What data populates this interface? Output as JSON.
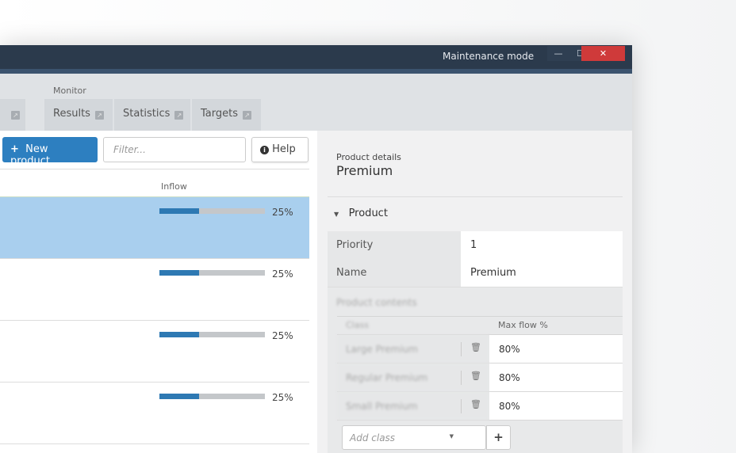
{
  "window": {
    "title": "Maintenance mode",
    "minimize": "—",
    "maximize": "☐",
    "close": "✕"
  },
  "nav": {
    "group": "Monitor",
    "tabs": [
      {
        "label": "Results"
      },
      {
        "label": "Statistics"
      },
      {
        "label": "Targets"
      }
    ]
  },
  "toolbar": {
    "new_label": "New product",
    "filter_placeholder": "Filter...",
    "help_label": "Help"
  },
  "list": {
    "column": "Inflow",
    "rows": [
      {
        "inflow": 25,
        "label": "25%",
        "selected": true
      },
      {
        "inflow": 25,
        "label": "25%"
      },
      {
        "inflow": 25,
        "label": "25%"
      },
      {
        "inflow": 25,
        "label": "25%"
      }
    ]
  },
  "details": {
    "caption": "Product details",
    "title": "Premium",
    "section": "Product",
    "fields": [
      {
        "key": "Priority",
        "value": "1"
      },
      {
        "key": "Name",
        "value": "Premium"
      }
    ],
    "contents": {
      "label": "Product contents",
      "col_class": "Class",
      "col_max": "Max flow %",
      "rows": [
        {
          "class": "Large Premium",
          "max": "80%"
        },
        {
          "class": "Regular Premium",
          "max": "80%"
        },
        {
          "class": "Small Premium",
          "max": "80%"
        }
      ],
      "add_placeholder": "Add class",
      "add_button": "+"
    }
  },
  "colors": {
    "accent": "#2d7fc0",
    "selected": "#a9cfee",
    "titlebar": "#2b3a4c",
    "close": "#cf3a3a"
  }
}
